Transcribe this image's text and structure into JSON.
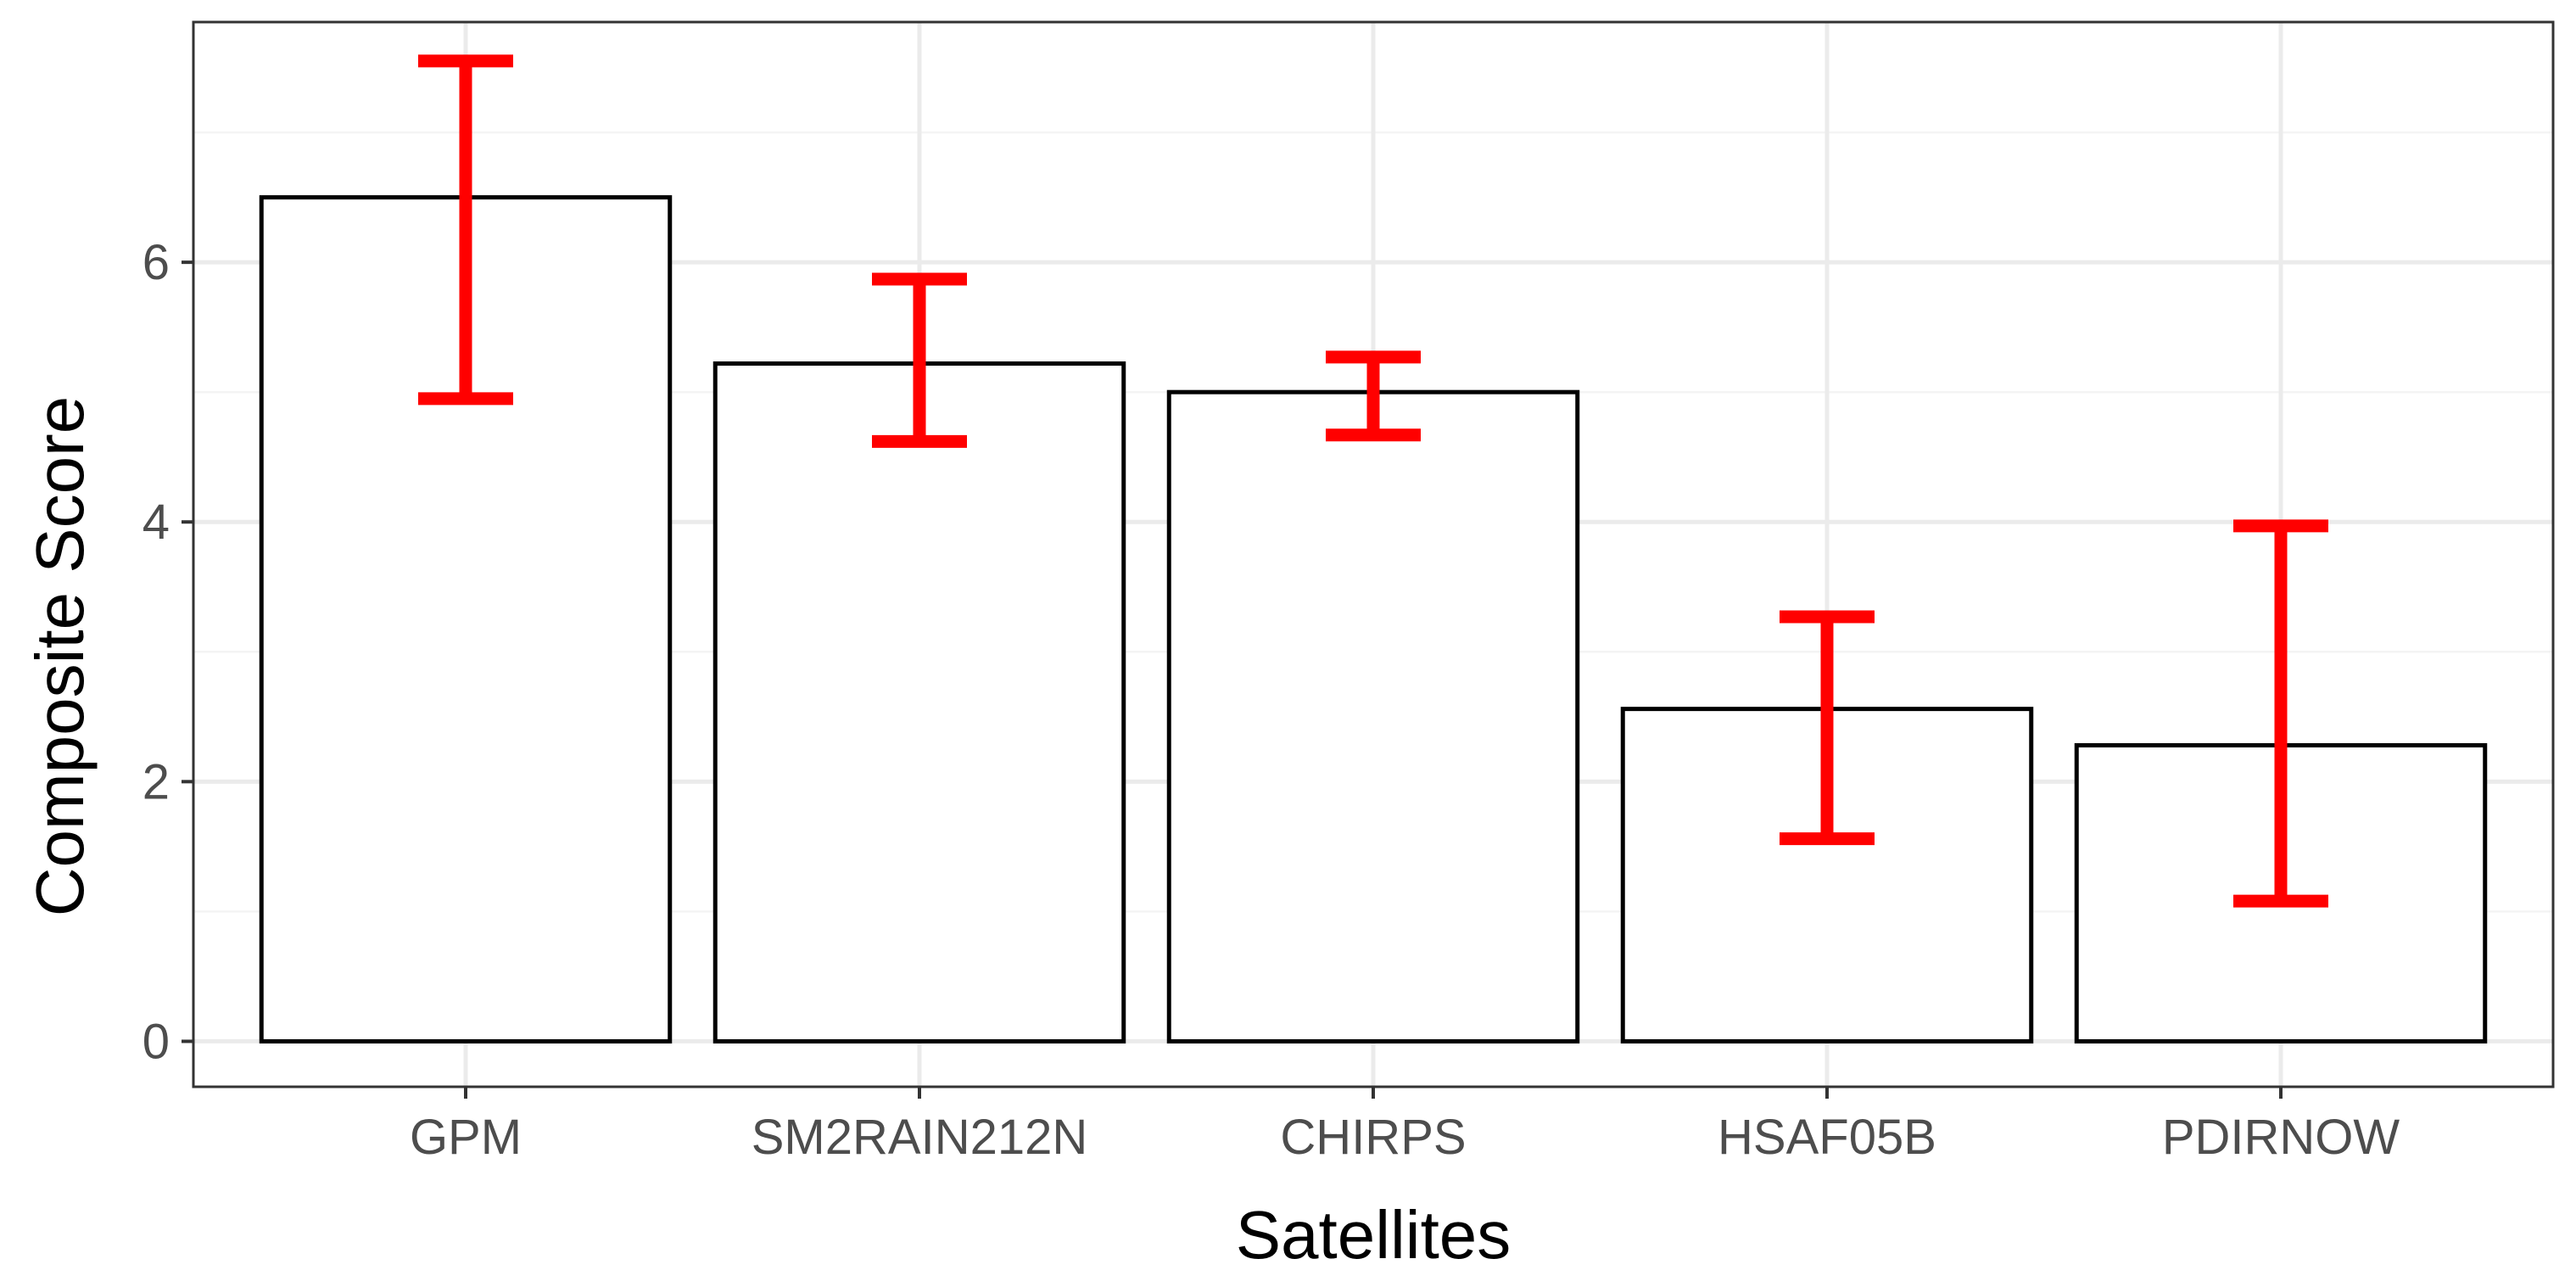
{
  "chart_data": {
    "type": "bar",
    "title": "",
    "xlabel": "Satellites",
    "ylabel": "Composite Score",
    "categories": [
      "GPM",
      "SM2RAIN212N",
      "CHIRPS",
      "HSAF05B",
      "PDIRNOW"
    ],
    "values": [
      6.5,
      5.22,
      5.0,
      2.56,
      2.28
    ],
    "error_low": [
      4.95,
      4.62,
      4.67,
      1.56,
      1.08
    ],
    "error_high": [
      7.55,
      5.87,
      5.27,
      3.27,
      3.97
    ],
    "yticks": [
      0,
      2,
      4,
      6
    ],
    "ylim": [
      -0.35,
      7.85
    ],
    "grid": true,
    "colors": {
      "bar_fill": "#ffffff",
      "bar_stroke": "#000000",
      "error_bar": "#ff0000",
      "grid_major": "#ebebeb",
      "grid_minor": "#f4f4f4",
      "panel_border": "#333333",
      "tick_text": "#4d4d4d"
    }
  }
}
